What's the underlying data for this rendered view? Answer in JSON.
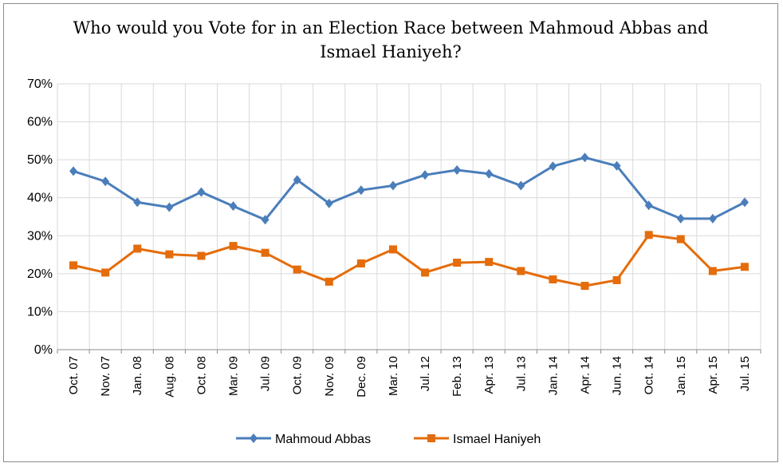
{
  "chart_data": {
    "type": "line",
    "title": "Who would you Vote for in an Election Race between Mahmoud Abbas and Ismael Haniyeh?",
    "xlabel": "",
    "ylabel": "",
    "ylim": [
      0,
      70
    ],
    "yticks": [
      "0%",
      "10%",
      "20%",
      "30%",
      "40%",
      "50%",
      "60%",
      "70%"
    ],
    "grid": true,
    "legend_position": "bottom",
    "categories": [
      "Oct. 07",
      "Nov. 07",
      "Jan. 08",
      "Aug. 08",
      "Oct. 08",
      "Mar. 09",
      "Jul. 09",
      "Oct. 09",
      "Nov. 09",
      "Dec. 09",
      "Mar. 10",
      "Jul. 12",
      "Feb. 13",
      "Apr. 13",
      "Jul. 13",
      "Jan. 14",
      "Apr. 14",
      "Jun. 14",
      "Oct. 14",
      "Jan. 15",
      "Apr. 15",
      "Jul. 15"
    ],
    "series": [
      {
        "name": "Mahmoud Abbas",
        "color": "#4a7ebb",
        "marker": "diamond",
        "values": [
          47,
          44.3,
          38.8,
          37.5,
          41.5,
          37.8,
          34.2,
          44.7,
          38.5,
          42,
          43.2,
          46,
          47.3,
          46.3,
          43.2,
          48.3,
          50.6,
          48.4,
          38,
          34.5,
          34.5,
          38.8
        ]
      },
      {
        "name": "Ismael Haniyeh",
        "color": "#e46c0a",
        "marker": "square",
        "values": [
          22.2,
          20.3,
          26.6,
          25.1,
          24.7,
          27.3,
          25.5,
          21.1,
          17.9,
          22.7,
          26.4,
          20.3,
          22.9,
          23.1,
          20.7,
          18.5,
          16.8,
          18.3,
          30.2,
          29.1,
          20.7,
          21.8
        ]
      }
    ]
  }
}
